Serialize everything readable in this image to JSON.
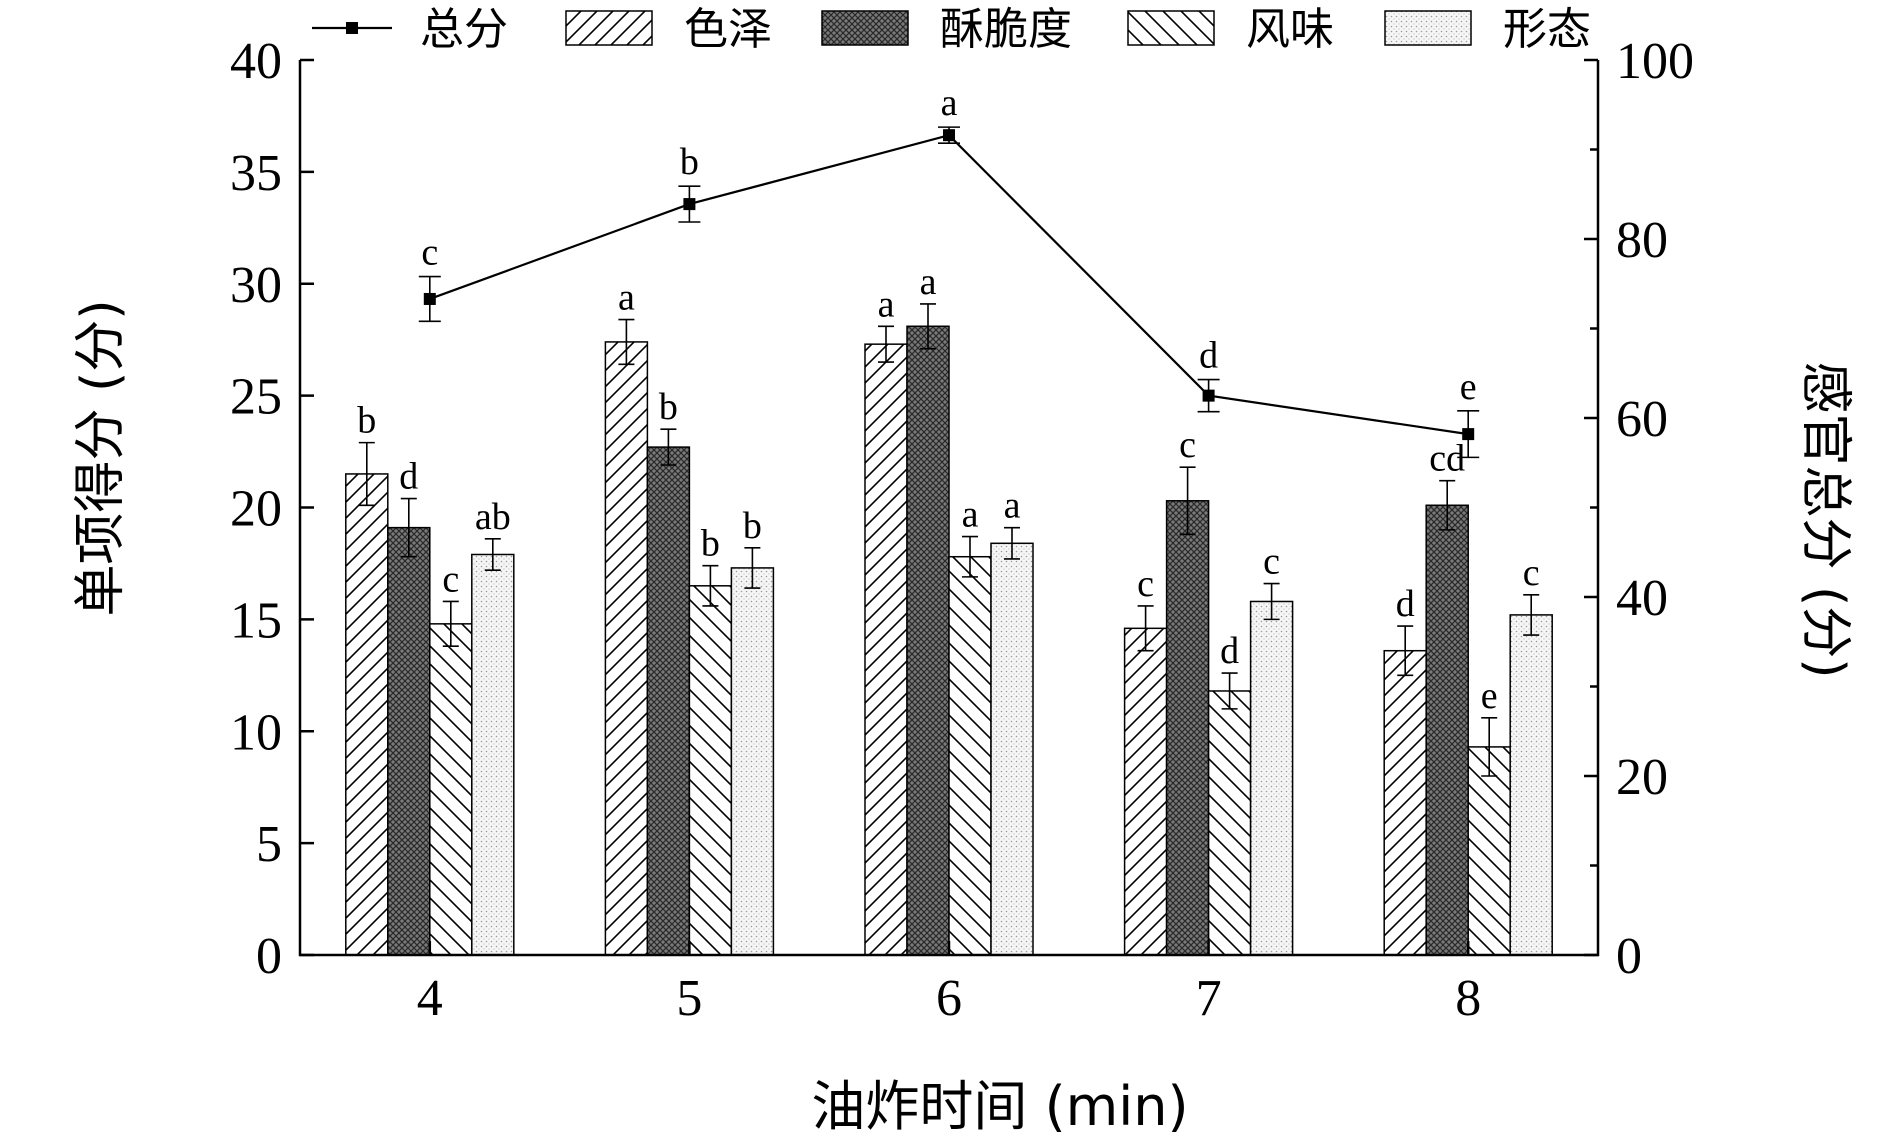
{
  "chart_data": {
    "type": "bar",
    "categories": [
      "4",
      "5",
      "6",
      "7",
      "8"
    ],
    "xlabel": "油炸时间 (min)",
    "ylabel": "单项得分 (分)",
    "ylabel_right": "感官总分 (分)",
    "ylim": [
      0,
      40
    ],
    "yticks": [
      "0",
      "5",
      "10",
      "15",
      "20",
      "25",
      "30",
      "35",
      "40"
    ],
    "ylim_right": [
      0,
      100
    ],
    "yticks_right": [
      "0",
      "20",
      "40",
      "60",
      "80",
      "100"
    ],
    "legend_position": "top",
    "series": [
      {
        "name": "色泽",
        "pattern": "diagonal-forward",
        "values": [
          21.5,
          27.4,
          27.3,
          14.6,
          13.6
        ],
        "errors": [
          1.4,
          1.0,
          0.8,
          1.0,
          1.1
        ],
        "labels": [
          "b",
          "a",
          "a",
          "c",
          "d"
        ]
      },
      {
        "name": "酥脆度",
        "pattern": "dense-dark",
        "values": [
          19.1,
          22.7,
          28.1,
          20.3,
          20.1
        ],
        "errors": [
          1.3,
          0.8,
          1.0,
          1.5,
          1.1
        ],
        "labels": [
          "d",
          "b",
          "a",
          "c",
          "cd"
        ]
      },
      {
        "name": "风味",
        "pattern": "diagonal-back",
        "values": [
          14.8,
          16.5,
          17.8,
          11.8,
          9.3
        ],
        "errors": [
          1.0,
          0.9,
          0.9,
          0.8,
          1.3
        ],
        "labels": [
          "c",
          "b",
          "a",
          "d",
          "e"
        ]
      },
      {
        "name": "形态",
        "pattern": "dots-light",
        "values": [
          17.9,
          17.3,
          18.4,
          15.8,
          15.2
        ],
        "errors": [
          0.7,
          0.9,
          0.7,
          0.8,
          0.9
        ],
        "labels": [
          "ab",
          "b",
          "a",
          "c",
          "c"
        ]
      }
    ],
    "line_series": {
      "name": "总分",
      "axis": "right",
      "marker": "square",
      "values": [
        73.3,
        83.9,
        91.6,
        62.5,
        58.2
      ],
      "errors": [
        2.5,
        2.0,
        0.9,
        1.8,
        2.6
      ],
      "labels": [
        "c",
        "b",
        "a",
        "d",
        "e"
      ]
    }
  }
}
